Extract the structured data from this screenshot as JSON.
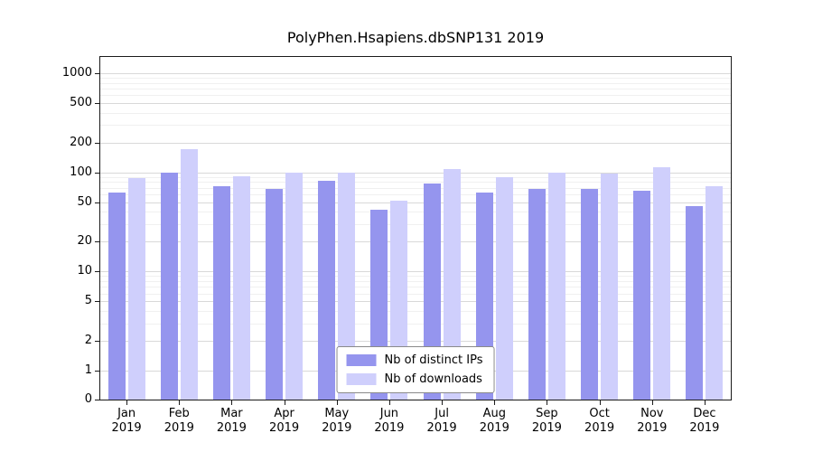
{
  "chart_data": {
    "type": "bar",
    "title": "PolyPhen.Hsapiens.dbSNP131 2019",
    "categories": [
      "Jan",
      "Feb",
      "Mar",
      "Apr",
      "May",
      "Jun",
      "Jul",
      "Aug",
      "Sep",
      "Oct",
      "Nov",
      "Dec"
    ],
    "x_label_line2": "2019",
    "series": [
      {
        "name": "Nb of distinct IPs",
        "color": "#9595ee",
        "values": [
          62,
          100,
          72,
          68,
          82,
          42,
          78,
          63,
          68,
          68,
          65,
          46
        ]
      },
      {
        "name": "Nb of downloads",
        "color": "#cfcffc",
        "values": [
          88,
          170,
          92,
          100,
          100,
          52,
          107,
          90,
          100,
          97,
          112,
          72
        ]
      }
    ],
    "yscale": "log",
    "yticks": [
      0,
      1,
      2,
      5,
      10,
      20,
      50,
      100,
      200,
      500,
      1000
    ],
    "ylim": [
      0,
      1000
    ],
    "grid": true,
    "legend_position": "bottom-center-inside"
  }
}
